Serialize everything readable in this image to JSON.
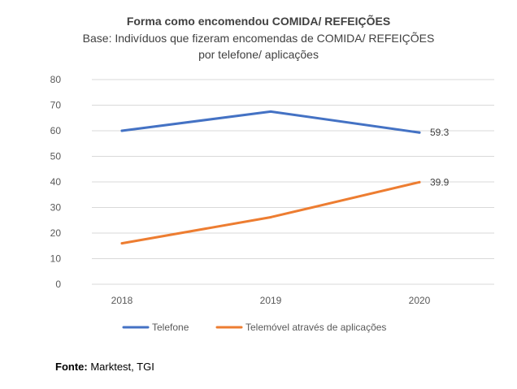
{
  "chart_data": {
    "type": "line",
    "title": "Forma como encomendou COMIDA/ REFEIÇÕES",
    "subtitle_lines": [
      "Base: Indivíduos que fizeram encomendas de COMIDA/ REFEIÇÕES",
      "por telefone/ aplicações"
    ],
    "categories": [
      "2018",
      "2019",
      "2020"
    ],
    "ylim": [
      0,
      80
    ],
    "yticks": [
      0,
      10,
      20,
      30,
      40,
      50,
      60,
      70,
      80
    ],
    "grid": true,
    "legend_position": "bottom",
    "series": [
      {
        "name": "Telefone",
        "values": [
          60.0,
          67.5,
          59.3
        ],
        "color": "#4472C4",
        "labels": [
          null,
          null,
          "59.3"
        ]
      },
      {
        "name": "Telemóvel através de aplicações",
        "values": [
          16.0,
          26.2,
          39.9
        ],
        "color": "#ED7D31",
        "labels": [
          null,
          null,
          "39.9"
        ]
      }
    ]
  },
  "source": {
    "label": "Fonte:",
    "text": " Marktest, TGI"
  }
}
